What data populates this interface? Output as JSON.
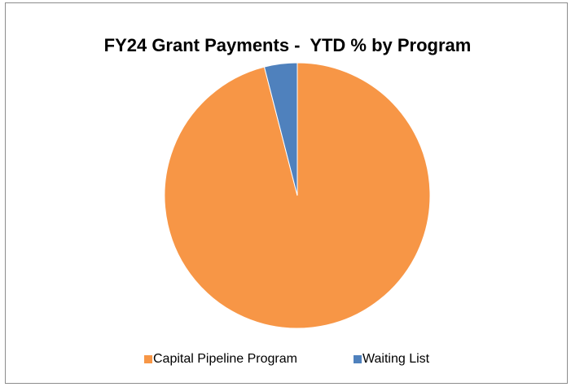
{
  "chart_data": {
    "type": "pie",
    "title": "FY24 Grant Payments -  YTD % by Program",
    "categories": [
      "Capital Pipeline Program",
      "Waiting List"
    ],
    "values": [
      96,
      4
    ],
    "colors": [
      "#f79646",
      "#4f81bd"
    ],
    "legend": "bottom"
  }
}
